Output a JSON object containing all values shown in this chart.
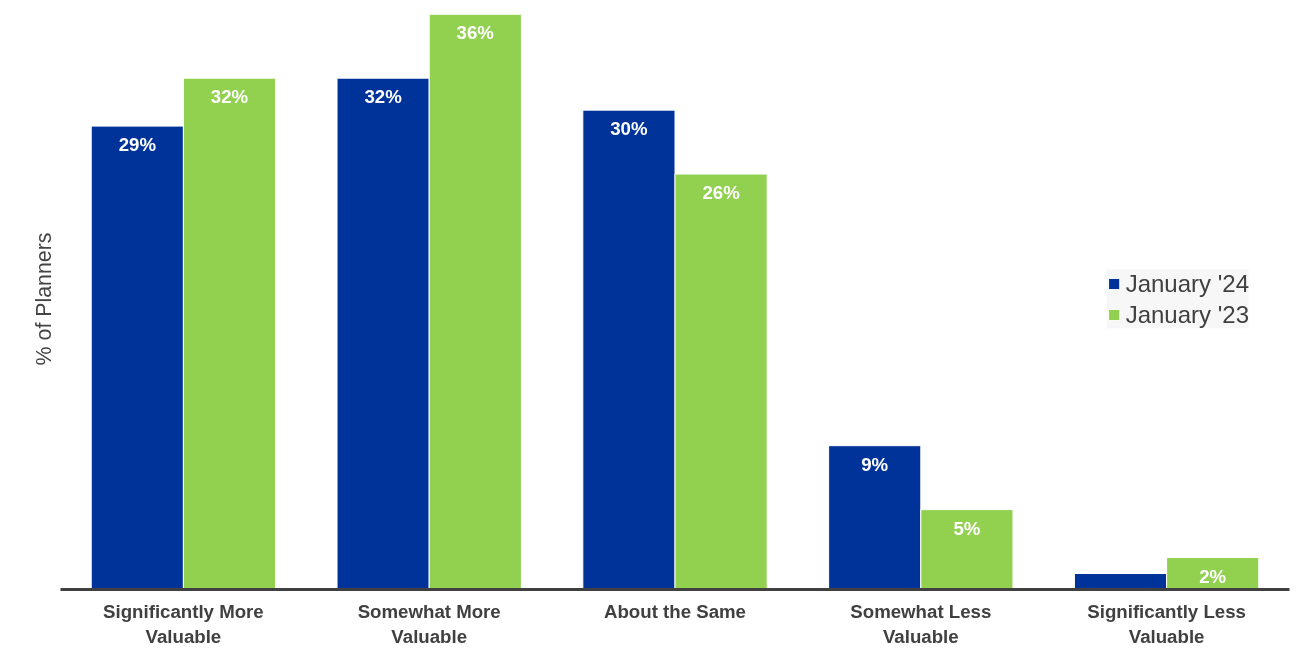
{
  "chart_data": {
    "type": "bar",
    "ylabel": "% of Planners",
    "categories": [
      "Significantly More Valuable",
      "Somewhat More Valuable",
      "About the Same",
      "Somewhat Less Valuable",
      "Significantly Less Valuable"
    ],
    "series": [
      {
        "name": "January '24",
        "color": "#003399",
        "values": [
          29,
          32,
          30,
          9,
          1
        ],
        "value_labels": [
          "29%",
          "32%",
          "30%",
          "9%",
          null
        ]
      },
      {
        "name": "January '23",
        "color": "#92d050",
        "values": [
          32,
          36,
          26,
          5,
          2
        ],
        "value_labels": [
          "32%",
          "36%",
          "26%",
          "5%",
          "2%"
        ]
      }
    ],
    "grid": false,
    "legend": "right"
  }
}
